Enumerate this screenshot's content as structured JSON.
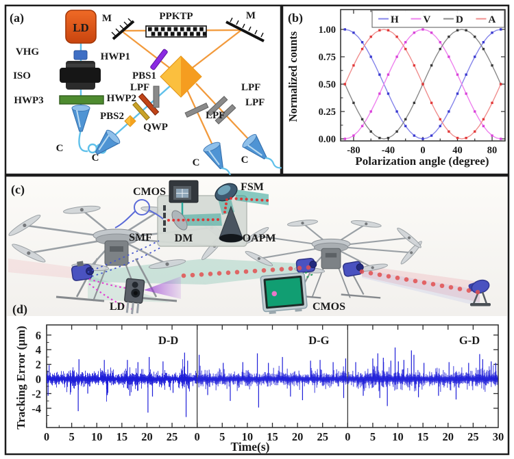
{
  "panels": {
    "a": {
      "label": "(a)",
      "labels": {
        "ld": "LD",
        "vhg": "VHG",
        "iso": "ISO",
        "hwp3": "HWP3",
        "pbs2": "PBS2",
        "qwp": "QWP",
        "hwp2": "HWP2",
        "hwp1": "HWP1",
        "pbs1": "PBS1",
        "ppktp": "PPKTP",
        "m_left": "M",
        "m_right": "M",
        "lpf_v": "LPF",
        "lpf_single": "LPF",
        "lpf_pair_a": "LPF",
        "lpf_pair_b": "LPF",
        "c1": "C",
        "c2": "C",
        "c3": "C",
        "c4": "C"
      }
    },
    "b": {
      "label": "(b)"
    },
    "c": {
      "label": "(c)",
      "labels": {
        "cmos_module": "CMOS",
        "fsm": "FSM",
        "smf": "SMF",
        "dm": "DM",
        "oapm": "OAPM",
        "ld": "LD",
        "cmos_screen": "CMOS"
      }
    },
    "d": {
      "label": "(d)"
    }
  },
  "chart_data": [
    {
      "type": "line",
      "title": "",
      "xlabel": "Polarization angle (degree)",
      "ylabel": "Normalized counts",
      "xlim": [
        -95,
        95
      ],
      "ylim": [
        0,
        1
      ],
      "xticks": [
        -80,
        -40,
        0,
        40,
        80
      ],
      "yticks": [
        "0.00",
        "0.25",
        "0.50",
        "0.75",
        "1.00"
      ],
      "ytick_values": [
        0,
        0.25,
        0.5,
        0.75,
        1.0
      ],
      "legend_position": "top",
      "markers_every_deg": 10,
      "x": [
        -90,
        -85,
        -80,
        -75,
        -70,
        -65,
        -60,
        -55,
        -50,
        -45,
        -40,
        -35,
        -30,
        -25,
        -20,
        -15,
        -10,
        -5,
        0,
        5,
        10,
        15,
        20,
        25,
        30,
        35,
        40,
        45,
        50,
        55,
        60,
        65,
        70,
        75,
        80,
        85,
        90
      ],
      "series": [
        {
          "name": "H",
          "line_color": "#8585ea",
          "marker_color": "#3b3bd0",
          "values": [
            1,
            0.992,
            0.97,
            0.933,
            0.883,
            0.821,
            0.75,
            0.671,
            0.587,
            0.5,
            0.413,
            0.329,
            0.25,
            0.179,
            0.117,
            0.067,
            0.03,
            0.008,
            0,
            0.008,
            0.03,
            0.067,
            0.117,
            0.179,
            0.25,
            0.329,
            0.413,
            0.5,
            0.587,
            0.671,
            0.75,
            0.821,
            0.883,
            0.933,
            0.97,
            0.992,
            1
          ]
        },
        {
          "name": "V",
          "line_color": "#ee82ee",
          "marker_color": "#d943d9",
          "values": [
            0,
            0.008,
            0.03,
            0.067,
            0.117,
            0.179,
            0.25,
            0.329,
            0.413,
            0.5,
            0.587,
            0.671,
            0.75,
            0.821,
            0.883,
            0.933,
            0.97,
            0.992,
            1,
            0.992,
            0.97,
            0.933,
            0.883,
            0.821,
            0.75,
            0.671,
            0.587,
            0.5,
            0.413,
            0.329,
            0.25,
            0.179,
            0.117,
            0.067,
            0.03,
            0.008,
            0
          ]
        },
        {
          "name": "D",
          "line_color": "#8a8a8a",
          "marker_color": "#3a3a3a",
          "values": [
            0.5,
            0.413,
            0.329,
            0.25,
            0.179,
            0.117,
            0.067,
            0.03,
            0.008,
            0,
            0.008,
            0.03,
            0.067,
            0.117,
            0.179,
            0.25,
            0.329,
            0.413,
            0.5,
            0.587,
            0.671,
            0.75,
            0.821,
            0.883,
            0.933,
            0.97,
            0.992,
            1,
            0.992,
            0.97,
            0.933,
            0.883,
            0.821,
            0.75,
            0.671,
            0.587,
            0.5
          ]
        },
        {
          "name": "A",
          "line_color": "#f08f8f",
          "marker_color": "#e23b3b",
          "values": [
            0.5,
            0.587,
            0.671,
            0.75,
            0.821,
            0.883,
            0.933,
            0.97,
            0.992,
            1,
            0.992,
            0.97,
            0.933,
            0.883,
            0.821,
            0.75,
            0.671,
            0.587,
            0.5,
            0.413,
            0.329,
            0.25,
            0.179,
            0.117,
            0.067,
            0.03,
            0.008,
            0,
            0.008,
            0.03,
            0.067,
            0.117,
            0.179,
            0.25,
            0.329,
            0.413,
            0.5
          ]
        }
      ]
    },
    {
      "type": "line",
      "title": "",
      "xlabel": "Time(s)",
      "ylabel": "Tracking Error (µm)",
      "ylim": [
        -6.5,
        7.3
      ],
      "yticks": [
        6,
        4,
        2,
        0,
        -2,
        -4
      ],
      "xticks_per_segment": [
        0,
        5,
        10,
        15,
        20,
        25
      ],
      "final_xtick": 30,
      "segment_duration_s": 30,
      "line_color": "#1d1dd8",
      "segments": [
        {
          "label": "D-D",
          "noise_std": 0.6,
          "seed": 11,
          "bursts": [
            {
              "t0": 3.8,
              "t1": 7.2,
              "gain": 1.5
            },
            {
              "t0": 10.8,
              "t1": 13.2,
              "gain": 1.35
            },
            {
              "t0": 15.5,
              "t1": 21.3,
              "gain": 1.45
            },
            {
              "t0": 26.3,
              "t1": 28.6,
              "gain": 1.6
            }
          ],
          "spikes": [
            [
              0.3,
              -2.3
            ],
            [
              0.5,
              1.9
            ],
            [
              6.3,
              -4.4
            ],
            [
              6.45,
              2.7
            ],
            [
              8.2,
              -2.0
            ],
            [
              11.5,
              2.6
            ],
            [
              12.1,
              -2.2
            ],
            [
              16.1,
              2.6
            ],
            [
              16.6,
              -2.3
            ],
            [
              18.2,
              2.3
            ],
            [
              20.2,
              -4.6
            ],
            [
              20.45,
              3.0
            ],
            [
              21.1,
              -2.4
            ],
            [
              23.2,
              2.4
            ],
            [
              25.2,
              -1.9
            ],
            [
              27.5,
              3.6
            ],
            [
              27.8,
              -5.2
            ],
            [
              28.1,
              2.5
            ]
          ]
        },
        {
          "label": "D-G",
          "noise_std": 0.7,
          "seed": 22,
          "bursts": [],
          "spikes": [
            [
              0.4,
              3.3
            ],
            [
              2.1,
              -2.2
            ],
            [
              5.2,
              2.2
            ],
            [
              6.6,
              -3.0
            ],
            [
              9.1,
              2.3
            ],
            [
              12.0,
              3.5
            ],
            [
              12.25,
              -3.9
            ],
            [
              14.2,
              2.2
            ],
            [
              17.0,
              3.0
            ],
            [
              18.6,
              -2.4
            ],
            [
              21.0,
              -2.9
            ],
            [
              22.6,
              2.5
            ],
            [
              24.5,
              2.6
            ],
            [
              27.1,
              2.3
            ],
            [
              29.2,
              -2.6
            ],
            [
              29.6,
              2.8
            ]
          ]
        },
        {
          "label": "G-D",
          "noise_std": 0.74,
          "seed": 33,
          "bursts": [
            {
              "t0": 4.5,
              "t1": 13.5,
              "gain": 1.35
            },
            {
              "t0": 25.8,
              "t1": 29.0,
              "gain": 1.2
            }
          ],
          "spikes": [
            [
              1.6,
              2.3
            ],
            [
              3.1,
              -2.3
            ],
            [
              5.0,
              2.8
            ],
            [
              6.0,
              3.5
            ],
            [
              6.4,
              -2.6
            ],
            [
              7.1,
              2.9
            ],
            [
              7.9,
              -3.7
            ],
            [
              8.6,
              2.5
            ],
            [
              9.45,
              4.3
            ],
            [
              10.1,
              2.4
            ],
            [
              11.2,
              2.6
            ],
            [
              12.7,
              3.9
            ],
            [
              13.2,
              3.3
            ],
            [
              14.1,
              -2.5
            ],
            [
              15.2,
              2.2
            ],
            [
              18.1,
              -2.3
            ],
            [
              20.2,
              2.3
            ],
            [
              21.6,
              -2.8
            ],
            [
              24.1,
              2.2
            ],
            [
              26.3,
              3.4
            ],
            [
              26.9,
              2.7
            ],
            [
              28.6,
              2.4
            ],
            [
              29.5,
              2.2
            ]
          ]
        }
      ]
    }
  ]
}
